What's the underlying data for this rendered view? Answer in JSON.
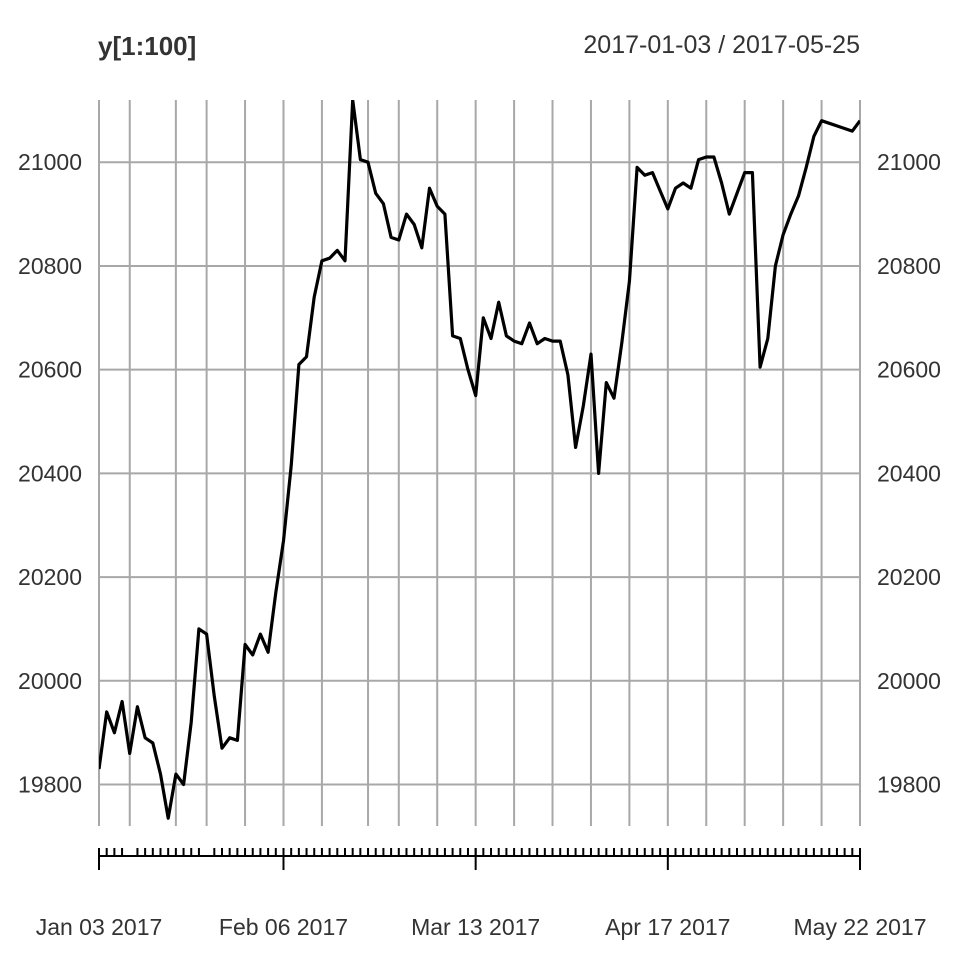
{
  "chart_data": {
    "type": "line",
    "title": "y[1:100]",
    "date_range": "2017-01-03 / 2017-05-25",
    "ylim": [
      19720,
      21120
    ],
    "ytick_values": [
      19800,
      20000,
      20200,
      20400,
      20600,
      20800,
      21000
    ],
    "ytick_labels": [
      "19800",
      "20000",
      "20200",
      "20400",
      "20600",
      "20800",
      "21000"
    ],
    "xtick_labels": [
      "Jan 03 2017",
      "Feb 06 2017",
      "Mar 13 2017",
      "Apr 17 2017",
      "May 22 2017"
    ],
    "xtick_positions": [
      0,
      24,
      49,
      74,
      99
    ],
    "vertical_grid_positions": [
      0,
      4,
      10,
      14,
      19,
      24,
      29,
      35,
      39,
      44,
      49,
      54,
      59,
      64,
      69,
      74,
      79,
      84,
      89,
      94,
      99
    ],
    "minor_tick_positions": [
      0,
      1,
      2,
      3,
      5,
      6,
      7,
      8,
      9,
      10,
      11,
      12,
      13,
      15,
      16,
      17,
      18,
      19,
      20,
      21,
      22,
      23,
      24,
      25,
      26,
      27,
      28,
      29,
      30,
      31,
      32,
      33,
      34,
      35,
      36,
      37,
      38,
      39,
      40,
      41,
      42,
      43,
      44,
      45,
      46,
      47,
      48,
      49,
      50,
      51,
      52,
      53,
      54,
      55,
      56,
      57,
      58,
      59,
      60,
      61,
      62,
      63,
      64,
      65,
      66,
      67,
      68,
      69,
      70,
      71,
      72,
      73,
      74,
      75,
      76,
      77,
      78,
      79,
      80,
      81,
      82,
      83,
      84,
      85,
      86,
      87,
      88,
      89,
      90,
      91,
      92,
      93,
      94,
      95,
      96,
      97,
      98,
      99
    ],
    "series": [
      {
        "name": "y",
        "x": [
          0,
          1,
          2,
          3,
          4,
          5,
          6,
          7,
          8,
          9,
          10,
          11,
          12,
          13,
          14,
          15,
          16,
          17,
          18,
          19,
          20,
          21,
          22,
          23,
          24,
          25,
          26,
          27,
          28,
          29,
          30,
          31,
          32,
          33,
          34,
          35,
          36,
          37,
          38,
          39,
          40,
          41,
          42,
          43,
          44,
          45,
          46,
          47,
          48,
          49,
          50,
          51,
          52,
          53,
          54,
          55,
          56,
          57,
          58,
          59,
          60,
          61,
          62,
          63,
          64,
          65,
          66,
          67,
          68,
          69,
          70,
          71,
          72,
          73,
          74,
          75,
          76,
          77,
          78,
          79,
          80,
          81,
          82,
          83,
          84,
          85,
          86,
          87,
          88,
          89,
          90,
          91,
          92,
          93,
          94,
          95,
          96,
          97,
          98,
          99
        ],
        "values": [
          19830,
          19940,
          19900,
          19960,
          19860,
          19950,
          19890,
          19880,
          19820,
          19735,
          19820,
          19800,
          19920,
          20100,
          20090,
          19970,
          19870,
          19890,
          19885,
          20070,
          20050,
          20090,
          20055,
          20170,
          20270,
          20415,
          20610,
          20625,
          20740,
          20810,
          20815,
          20830,
          20810,
          21120,
          21005,
          21000,
          20940,
          20920,
          20855,
          20850,
          20900,
          20880,
          20835,
          20950,
          20915,
          20900,
          20665,
          20660,
          20600,
          20550,
          20700,
          20660,
          20730,
          20665,
          20655,
          20650,
          20690,
          20650,
          20660,
          20655,
          20655,
          20590,
          20450,
          20530,
          20630,
          20400,
          20575,
          20545,
          20650,
          20770,
          20990,
          20975,
          20980,
          20945,
          20910,
          20950,
          20960,
          20950,
          21005,
          21010,
          21010,
          20960,
          20900,
          20940,
          20980,
          20980,
          20605,
          20660,
          20800,
          20860,
          20900,
          20935,
          20990,
          21050,
          21080,
          21075,
          21070,
          21065,
          21060,
          21080
        ]
      }
    ]
  }
}
